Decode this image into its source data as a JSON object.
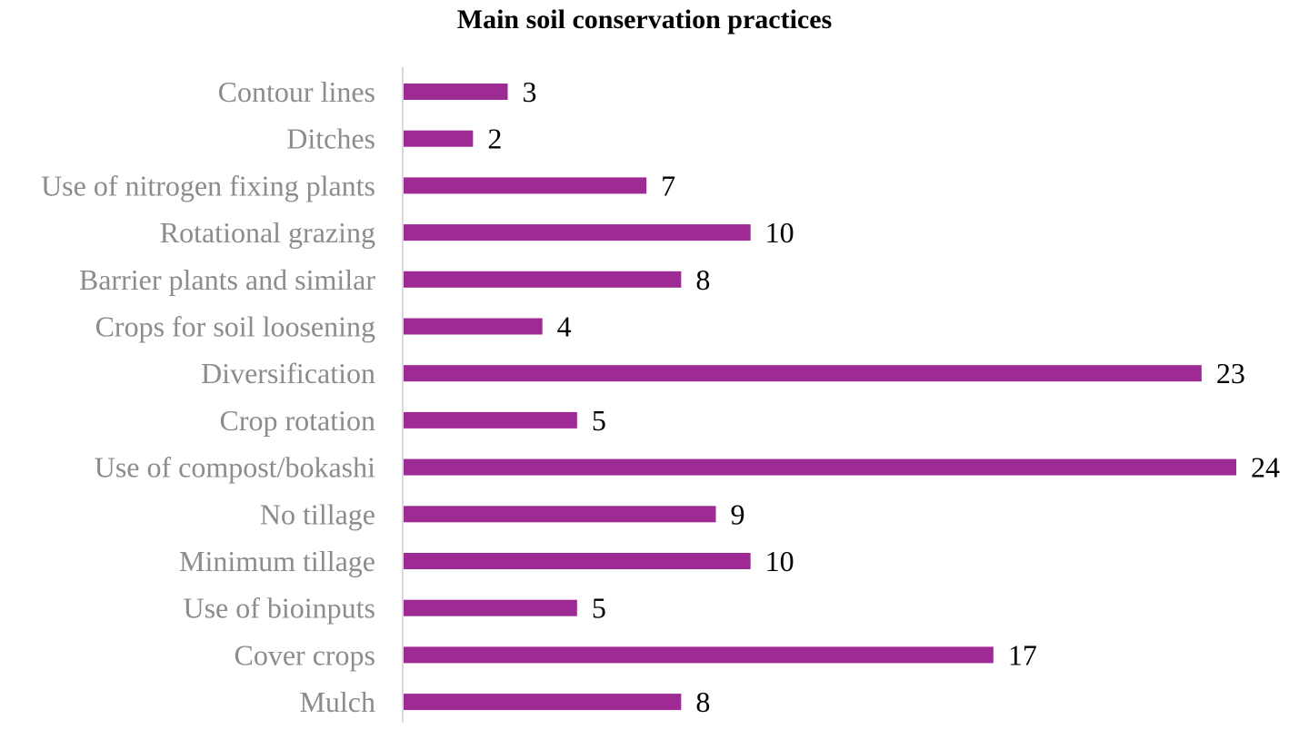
{
  "chart_data": {
    "type": "bar",
    "orientation": "horizontal",
    "title": "Main soil conservation practices",
    "xlabel": "",
    "ylabel": "",
    "categories": [
      "Contour lines",
      "Ditches",
      "Use of nitrogen fixing plants",
      "Rotational grazing",
      "Barrier plants and similar",
      "Crops for soil loosening",
      "Diversification",
      "Crop rotation",
      "Use of compost/bokashi",
      "No tillage",
      "Minimum tillage",
      "Use of bioinputs",
      "Cover crops",
      "Mulch"
    ],
    "values": [
      3,
      2,
      7,
      10,
      8,
      4,
      23,
      5,
      24,
      9,
      10,
      5,
      17,
      8
    ],
    "xlim": [
      0,
      24
    ],
    "data_labels": true,
    "grid": false,
    "legend": "none",
    "colors": {
      "bar": "#9e2a93",
      "category_label": "#8c8c8c",
      "value_label": "#000000",
      "axis_line": "#d9d9d9"
    }
  }
}
